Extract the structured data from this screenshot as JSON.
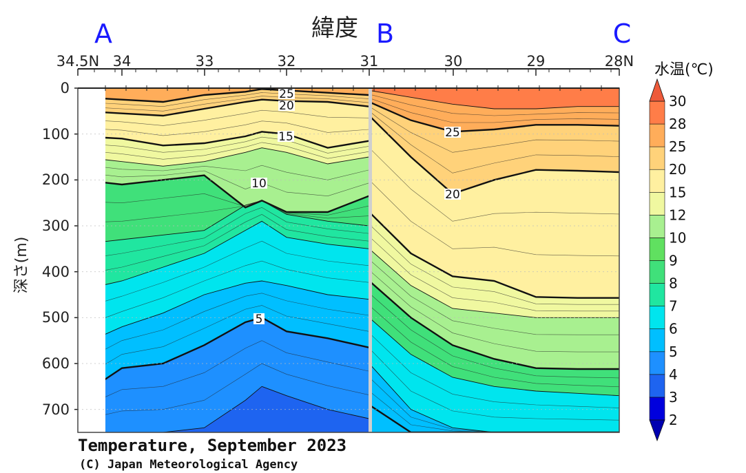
{
  "chart_data": {
    "type": "heatmap",
    "title": "Temperature, September 2023",
    "credit": "(C) Japan Meteorological Agency",
    "xlabel": "緯度",
    "ylabel": "深さ(m)",
    "section_labels": [
      "A",
      "B",
      "C"
    ],
    "x_ticks_ab": [
      "34.5N",
      "34",
      "33",
      "32",
      "31"
    ],
    "x_ticks_bc": [
      "30",
      "29",
      "28N"
    ],
    "y_ticks": [
      "0",
      "100",
      "200",
      "300",
      "400",
      "500",
      "600",
      "700"
    ],
    "ylim": [
      0,
      750
    ],
    "colorbar": {
      "title": "水温(℃)",
      "levels": [
        "2",
        "3",
        "4",
        "5",
        "6",
        "7",
        "8",
        "9",
        "10",
        "12",
        "15",
        "20",
        "25",
        "28",
        "30"
      ],
      "colors": [
        "#0000b0",
        "#0000dd",
        "#1e64f0",
        "#1e90ff",
        "#00bfff",
        "#00e5ee",
        "#20e6a0",
        "#40e07a",
        "#60e060",
        "#a8f090",
        "#f0f8a0",
        "#fff0a0",
        "#ffd27a",
        "#ffad5a",
        "#ff7d48",
        "#ee5a3a"
      ]
    },
    "contour_labels": [
      "25",
      "20",
      "15",
      "10",
      "5",
      "25",
      "20"
    ],
    "section_ab": {
      "lat": [
        34.5,
        34.0,
        33.5,
        33.0,
        32.5,
        32.3,
        32.0,
        31.5,
        31.0
      ],
      "isotherms": [
        {
          "t": 25,
          "depth": [
            20,
            25,
            30,
            15,
            8,
            2,
            5,
            10,
            15
          ]
        },
        {
          "t": 20,
          "depth": [
            50,
            55,
            60,
            45,
            30,
            25,
            28,
            30,
            40
          ]
        },
        {
          "t": 15,
          "depth": [
            105,
            110,
            125,
            120,
            105,
            95,
            100,
            130,
            115
          ]
        },
        {
          "t": 12,
          "depth": [
            150,
            160,
            170,
            160,
            140,
            130,
            140,
            165,
            150
          ]
        },
        {
          "t": 10,
          "depth": [
            200,
            210,
            200,
            190,
            260,
            245,
            270,
            270,
            235
          ]
        },
        {
          "t": 8,
          "depth": [
            340,
            330,
            320,
            310,
            255,
            245,
            275,
            290,
            300
          ]
        },
        {
          "t": 7,
          "depth": [
            440,
            420,
            390,
            360,
            310,
            290,
            325,
            340,
            350
          ]
        },
        {
          "t": 6,
          "depth": [
            560,
            520,
            490,
            450,
            425,
            420,
            430,
            450,
            460
          ]
        },
        {
          "t": 5,
          "depth": [
            670,
            610,
            600,
            560,
            510,
            500,
            530,
            545,
            565
          ]
        },
        {
          "t": 4,
          "depth": [
            750,
            750,
            750,
            740,
            680,
            650,
            670,
            700,
            720
          ]
        }
      ]
    },
    "section_bc": {
      "lat": [
        31.0,
        30.5,
        30.0,
        29.5,
        29.0,
        28.5,
        28.0
      ],
      "isotherms": [
        {
          "t": 28,
          "depth": [
            5,
            20,
            35,
            45,
            45,
            40,
            40
          ]
        },
        {
          "t": 25,
          "depth": [
            30,
            70,
            95,
            90,
            80,
            80,
            82
          ]
        },
        {
          "t": 20,
          "depth": [
            60,
            150,
            230,
            200,
            178,
            180,
            183
          ]
        },
        {
          "t": 15,
          "depth": [
            270,
            360,
            410,
            420,
            455,
            457,
            457
          ]
        },
        {
          "t": 12,
          "depth": [
            350,
            430,
            480,
            490,
            500,
            500,
            500
          ]
        },
        {
          "t": 10,
          "depth": [
            420,
            500,
            560,
            590,
            610,
            612,
            612
          ]
        },
        {
          "t": 8,
          "depth": [
            500,
            580,
            630,
            650,
            660,
            665,
            670
          ]
        },
        {
          "t": 6,
          "depth": [
            600,
            700,
            740,
            750,
            750,
            750,
            750
          ]
        },
        {
          "t": 5,
          "depth": [
            690,
            750,
            750,
            750,
            750,
            750,
            750
          ]
        }
      ]
    }
  }
}
